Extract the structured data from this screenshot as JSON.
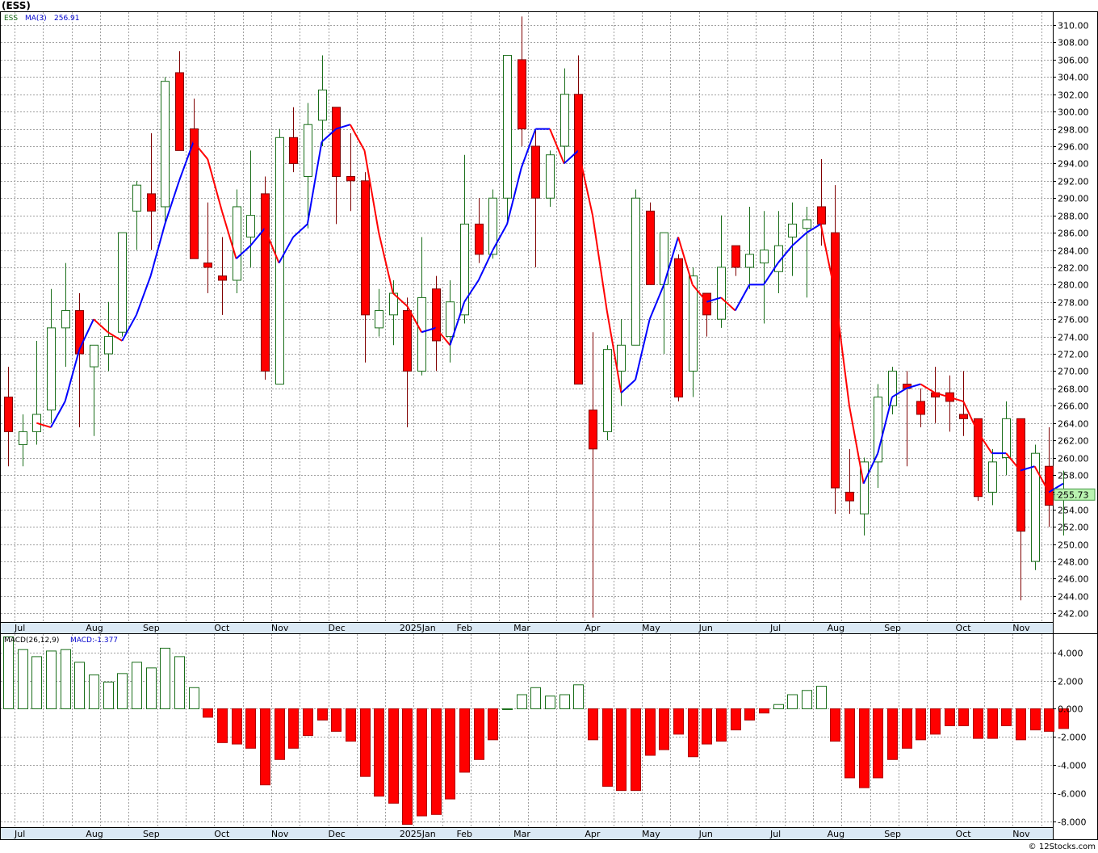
{
  "chart_data": {
    "type": "candlestick",
    "title": "(ESS)",
    "credit": "© 12Stocks.com",
    "colors": {
      "up": "#1a6e1a",
      "down": "#ff0000",
      "ma_up": "#0000ff",
      "ma_down": "#ff0000",
      "grid": "#a0a0a0",
      "last_label_bg": "#b9f3b0"
    },
    "price_panel": {
      "legend_symbol": "ESS",
      "legend_ma": "MA(3)",
      "legend_ma_value": "256.91",
      "last_price_label": "255.73",
      "last_price": 255.73,
      "ylim": [
        241,
        311.5
      ],
      "yticks": [
        242,
        244,
        246,
        248,
        250,
        252,
        254,
        256,
        258,
        260,
        262,
        264,
        266,
        268,
        270,
        272,
        274,
        276,
        278,
        280,
        282,
        284,
        286,
        288,
        290,
        292,
        294,
        296,
        298,
        300,
        302,
        304,
        306,
        308,
        310
      ],
      "ytick_labels": [
        "242.00",
        "244.00",
        "246.00",
        "248.00",
        "250.00",
        "252.00",
        "254.00",
        "256.00",
        "258.00",
        "260.00",
        "262.00",
        "264.00",
        "266.00",
        "268.00",
        "270.00",
        "272.00",
        "274.00",
        "276.00",
        "278.00",
        "280.00",
        "282.00",
        "284.00",
        "286.00",
        "288.00",
        "290.00",
        "292.00",
        "294.00",
        "296.00",
        "298.00",
        "300.00",
        "302.00",
        "304.00",
        "306.00",
        "308.00",
        "310.00"
      ]
    },
    "macd_panel": {
      "legend": "MACD(26,12,9)",
      "legend_value": "MACD:-1.377",
      "ylim": [
        -8.4,
        5.3
      ],
      "yticks": [
        4,
        2,
        0,
        -2,
        -4,
        -6,
        -8
      ],
      "ytick_labels": [
        "4.000",
        "2.000",
        "0.000",
        "-2.000",
        "-4.000",
        "-6.000",
        "-8.000"
      ]
    },
    "x_axis": {
      "labels": [
        "Jul",
        "Aug",
        "Sep",
        "Oct",
        "Nov",
        "Dec",
        "2025Jan",
        "Feb",
        "Mar",
        "Apr",
        "May",
        "Jun",
        "Jul",
        "Aug",
        "Sep",
        "Oct",
        "Nov"
      ],
      "label_week": [
        0,
        5,
        9,
        14,
        18,
        22,
        27,
        31,
        35,
        40,
        44,
        48,
        53,
        57,
        61,
        66,
        70
      ]
    },
    "candles": [
      {
        "o": 267.0,
        "h": 270.5,
        "l": 259.0,
        "c": 263.0
      },
      {
        "o": 261.5,
        "h": 265.0,
        "l": 259.0,
        "c": 263.0
      },
      {
        "o": 263.0,
        "h": 273.5,
        "l": 261.5,
        "c": 265.0
      },
      {
        "o": 265.5,
        "h": 279.5,
        "l": 264.0,
        "c": 275.0
      },
      {
        "o": 275.0,
        "h": 282.5,
        "l": 270.5,
        "c": 277.0
      },
      {
        "o": 277.0,
        "h": 279.0,
        "l": 263.5,
        "c": 272.0
      },
      {
        "o": 270.5,
        "h": 273.0,
        "l": 262.5,
        "c": 273.0
      },
      {
        "o": 272.0,
        "h": 278.0,
        "l": 270.0,
        "c": 274.0
      },
      {
        "o": 274.5,
        "h": 286.0,
        "l": 274.0,
        "c": 286.0
      },
      {
        "o": 288.5,
        "h": 292.0,
        "l": 284.0,
        "c": 291.5
      },
      {
        "o": 290.5,
        "h": 297.5,
        "l": 284.0,
        "c": 288.5
      },
      {
        "o": 289.0,
        "h": 304.0,
        "l": 287.0,
        "c": 303.5
      },
      {
        "o": 304.5,
        "h": 307.0,
        "l": 295.5,
        "c": 295.5
      },
      {
        "o": 298.0,
        "h": 301.5,
        "l": 283.0,
        "c": 283.0
      },
      {
        "o": 282.5,
        "h": 289.5,
        "l": 279.0,
        "c": 282.0
      },
      {
        "o": 281.0,
        "h": 285.5,
        "l": 276.5,
        "c": 280.5
      },
      {
        "o": 280.5,
        "h": 291.0,
        "l": 279.0,
        "c": 289.0
      },
      {
        "o": 285.5,
        "h": 295.5,
        "l": 282.0,
        "c": 288.0
      },
      {
        "o": 290.5,
        "h": 292.5,
        "l": 269.0,
        "c": 270.0
      },
      {
        "o": 268.5,
        "h": 298.0,
        "l": 268.5,
        "c": 297.0
      },
      {
        "o": 297.0,
        "h": 300.5,
        "l": 293.0,
        "c": 294.0
      },
      {
        "o": 292.5,
        "h": 301.0,
        "l": 286.5,
        "c": 298.5
      },
      {
        "o": 299.0,
        "h": 306.5,
        "l": 296.0,
        "c": 302.5
      },
      {
        "o": 300.5,
        "h": 300.5,
        "l": 287.0,
        "c": 292.5
      },
      {
        "o": 292.5,
        "h": 297.5,
        "l": 288.5,
        "c": 292.0
      },
      {
        "o": 292.0,
        "h": 293.0,
        "l": 271.0,
        "c": 276.5
      },
      {
        "o": 275.0,
        "h": 279.5,
        "l": 274.0,
        "c": 277.0
      },
      {
        "o": 276.5,
        "h": 280.5,
        "l": 273.0,
        "c": 279.0
      },
      {
        "o": 277.0,
        "h": 278.5,
        "l": 263.5,
        "c": 270.0
      },
      {
        "o": 270.0,
        "h": 285.5,
        "l": 269.5,
        "c": 278.5
      },
      {
        "o": 279.5,
        "h": 281.0,
        "l": 270.0,
        "c": 273.5
      },
      {
        "o": 274.0,
        "h": 280.5,
        "l": 271.0,
        "c": 278.0
      },
      {
        "o": 276.5,
        "h": 295.0,
        "l": 275.5,
        "c": 287.0
      },
      {
        "o": 287.0,
        "h": 290.0,
        "l": 282.5,
        "c": 283.5
      },
      {
        "o": 283.5,
        "h": 291.0,
        "l": 283.0,
        "c": 290.0
      },
      {
        "o": 290.0,
        "h": 306.5,
        "l": 287.0,
        "c": 306.5
      },
      {
        "o": 306.0,
        "h": 311.0,
        "l": 296.0,
        "c": 298.0
      },
      {
        "o": 296.0,
        "h": 298.0,
        "l": 282.0,
        "c": 290.0
      },
      {
        "o": 290.0,
        "h": 295.5,
        "l": 289.0,
        "c": 295.0
      },
      {
        "o": 296.0,
        "h": 305.0,
        "l": 294.0,
        "c": 302.0
      },
      {
        "o": 302.0,
        "h": 306.5,
        "l": 268.5,
        "c": 268.5
      },
      {
        "o": 265.5,
        "h": 274.5,
        "l": 241.5,
        "c": 261.0
      },
      {
        "o": 263.0,
        "h": 273.0,
        "l": 262.0,
        "c": 272.5
      },
      {
        "o": 270.0,
        "h": 276.0,
        "l": 266.0,
        "c": 273.0
      },
      {
        "o": 273.0,
        "h": 291.0,
        "l": 273.0,
        "c": 290.0
      },
      {
        "o": 288.5,
        "h": 289.5,
        "l": 280.0,
        "c": 280.0
      },
      {
        "o": 280.0,
        "h": 286.0,
        "l": 272.0,
        "c": 286.0
      },
      {
        "o": 283.0,
        "h": 283.5,
        "l": 266.5,
        "c": 267.0
      },
      {
        "o": 270.0,
        "h": 282.0,
        "l": 267.0,
        "c": 281.0
      },
      {
        "o": 279.0,
        "h": 279.0,
        "l": 274.0,
        "c": 276.5
      },
      {
        "o": 276.0,
        "h": 288.0,
        "l": 275.0,
        "c": 282.0
      },
      {
        "o": 284.5,
        "h": 284.5,
        "l": 281.0,
        "c": 282.0
      },
      {
        "o": 282.0,
        "h": 289.0,
        "l": 279.5,
        "c": 283.5
      },
      {
        "o": 282.5,
        "h": 288.5,
        "l": 275.5,
        "c": 284.0
      },
      {
        "o": 281.5,
        "h": 288.5,
        "l": 279.0,
        "c": 284.5
      },
      {
        "o": 285.5,
        "h": 289.5,
        "l": 281.0,
        "c": 287.0
      },
      {
        "o": 286.5,
        "h": 289.0,
        "l": 278.5,
        "c": 287.5
      },
      {
        "o": 289.0,
        "h": 294.5,
        "l": 284.5,
        "c": 287.0
      },
      {
        "o": 286.0,
        "h": 291.5,
        "l": 253.5,
        "c": 256.5
      },
      {
        "o": 256.0,
        "h": 261.0,
        "l": 253.5,
        "c": 255.0
      },
      {
        "o": 253.5,
        "h": 260.0,
        "l": 251.0,
        "c": 259.5
      },
      {
        "o": 259.5,
        "h": 268.5,
        "l": 256.5,
        "c": 267.0
      },
      {
        "o": 266.0,
        "h": 270.5,
        "l": 265.0,
        "c": 270.0
      },
      {
        "o": 268.5,
        "h": 270.0,
        "l": 259.0,
        "c": 268.0
      },
      {
        "o": 266.5,
        "h": 268.0,
        "l": 263.5,
        "c": 265.0
      },
      {
        "o": 267.5,
        "h": 270.5,
        "l": 264.0,
        "c": 267.0
      },
      {
        "o": 267.5,
        "h": 269.5,
        "l": 263.0,
        "c": 266.5
      },
      {
        "o": 265.0,
        "h": 270.0,
        "l": 262.5,
        "c": 264.5
      },
      {
        "o": 264.5,
        "h": 264.5,
        "l": 255.0,
        "c": 255.5
      },
      {
        "o": 256.0,
        "h": 261.0,
        "l": 254.5,
        "c": 259.5
      },
      {
        "o": 260.0,
        "h": 266.5,
        "l": 258.0,
        "c": 264.5
      },
      {
        "o": 264.5,
        "h": 264.5,
        "l": 243.5,
        "c": 251.5
      },
      {
        "o": 248.0,
        "h": 261.5,
        "l": 247.0,
        "c": 260.5
      },
      {
        "o": 259.0,
        "h": 263.5,
        "l": 252.0,
        "c": 254.5
      },
      {
        "o": 255.5,
        "h": 258.5,
        "l": 251.0,
        "c": 255.73
      }
    ],
    "ma": [
      null,
      null,
      264.0,
      263.5,
      266.5,
      272.5,
      276.0,
      274.5,
      273.5,
      276.5,
      281.0,
      287.0,
      292.0,
      296.5,
      294.5,
      288.5,
      283.0,
      284.5,
      286.5,
      282.5,
      285.5,
      287.0,
      296.5,
      298.0,
      298.5,
      295.5,
      286.0,
      279.0,
      277.5,
      274.5,
      275.0,
      273.0,
      278.0,
      280.5,
      284.0,
      287.0,
      293.5,
      298.0,
      298.0,
      294.0,
      295.5,
      288.0,
      277.0,
      267.5,
      269.0,
      276.0,
      280.0,
      285.5,
      280.0,
      278.0,
      278.5,
      277.0,
      280.0,
      280.0,
      282.5,
      284.5,
      286.0,
      287.0,
      279.0,
      266.0,
      257.0,
      260.5,
      267.0,
      268.0,
      268.5,
      267.5,
      267.0,
      266.5,
      263.0,
      260.5,
      260.5,
      258.5,
      259.0,
      256.0,
      257.0
    ],
    "macd": [
      5.1,
      4.2,
      3.7,
      4.1,
      4.2,
      3.3,
      2.4,
      1.9,
      2.5,
      3.3,
      2.9,
      4.3,
      3.7,
      1.5,
      -0.6,
      -2.4,
      -2.5,
      -2.8,
      -5.4,
      -3.6,
      -2.8,
      -1.9,
      -0.8,
      -1.6,
      -2.3,
      -4.8,
      -6.2,
      -6.7,
      -8.2,
      -7.6,
      -7.5,
      -6.4,
      -4.5,
      -3.6,
      -2.2,
      0.0,
      1.0,
      1.5,
      0.9,
      1.0,
      1.7,
      -2.2,
      -5.5,
      -5.8,
      -5.8,
      -3.3,
      -2.9,
      -1.8,
      -3.4,
      -2.5,
      -2.3,
      -1.5,
      -0.8,
      -0.3,
      0.3,
      1.0,
      1.3,
      1.6,
      -2.3,
      -4.9,
      -5.6,
      -4.9,
      -3.6,
      -2.8,
      -2.2,
      -1.8,
      -1.2,
      -1.2,
      -2.1,
      -2.1,
      -1.2,
      -2.2,
      -1.5,
      -1.6,
      -1.4
    ]
  }
}
